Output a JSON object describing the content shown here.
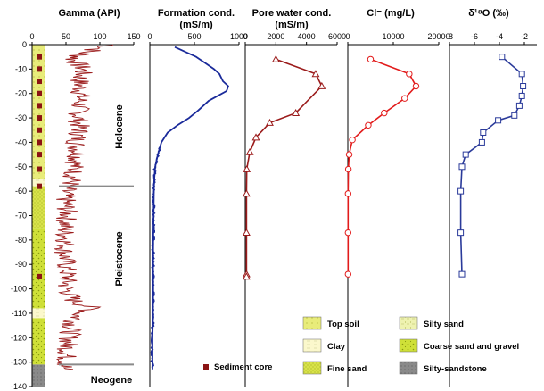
{
  "colors": {
    "gamma": "#9b1b1b",
    "formation": "#1a2a9a",
    "porewater": "#9b1b1b",
    "chloride": "#e21b1b",
    "d18o": "#2a3a9a",
    "top_soil": "#e8ec7a",
    "clay": "#fbf8cc",
    "fine_sand": "#d8e24a",
    "silty_sand": "#eef2b0",
    "coarse_sand": "#cfe038",
    "silty_sandstone": "#8a8a8a",
    "core_marker": "#8b1414",
    "boundary": "#8a8a8a"
  },
  "chart_data": [
    {
      "type": "line",
      "name": "gamma",
      "title": "Gamma (API)",
      "xlim": [
        0,
        150
      ],
      "xticks": [
        0,
        50,
        100,
        150
      ],
      "ylim": [
        0,
        -140
      ],
      "yticks": [
        0,
        -10,
        -20,
        -30,
        -40,
        -50,
        -60,
        -70,
        -80,
        -90,
        -100,
        -110,
        -120,
        -130,
        -140
      ],
      "x_profile": [
        [
          0,
          120
        ],
        [
          -3,
          80
        ],
        [
          -6,
          60
        ],
        [
          -10,
          75
        ],
        [
          -15,
          70
        ],
        [
          -20,
          72
        ],
        [
          -25,
          70
        ],
        [
          -30,
          68
        ],
        [
          -35,
          70
        ],
        [
          -40,
          65
        ],
        [
          -45,
          68
        ],
        [
          -50,
          62
        ],
        [
          -55,
          60
        ],
        [
          -58,
          55
        ],
        [
          -60,
          48
        ],
        [
          -65,
          50
        ],
        [
          -70,
          52
        ],
        [
          -75,
          48
        ],
        [
          -80,
          50
        ],
        [
          -85,
          48
        ],
        [
          -90,
          50
        ],
        [
          -95,
          52
        ],
        [
          -100,
          50
        ],
        [
          -105,
          62
        ],
        [
          -108,
          90
        ],
        [
          -110,
          70
        ],
        [
          -115,
          58
        ],
        [
          -120,
          55
        ],
        [
          -125,
          52
        ],
        [
          -130,
          50
        ],
        [
          -133,
          48
        ]
      ]
    },
    {
      "type": "line",
      "name": "formation",
      "title": "Formation cond.",
      "xlabel": "(mS/m)",
      "xlim": [
        0,
        1000
      ],
      "xticks": [
        0,
        500,
        1000
      ],
      "ylim": [
        0,
        -140
      ],
      "points": [
        [
          -1,
          280
        ],
        [
          -3,
          400
        ],
        [
          -5,
          520
        ],
        [
          -8,
          640
        ],
        [
          -10,
          720
        ],
        [
          -12,
          780
        ],
        [
          -15,
          820
        ],
        [
          -17,
          880
        ],
        [
          -19,
          860
        ],
        [
          -21,
          760
        ],
        [
          -23,
          660
        ],
        [
          -25,
          600
        ],
        [
          -27,
          540
        ],
        [
          -30,
          440
        ],
        [
          -33,
          310
        ],
        [
          -36,
          200
        ],
        [
          -40,
          130
        ],
        [
          -45,
          90
        ],
        [
          -50,
          60
        ],
        [
          -55,
          50
        ],
        [
          -60,
          45
        ],
        [
          -70,
          42
        ],
        [
          -80,
          38
        ],
        [
          -90,
          36
        ],
        [
          -100,
          38
        ],
        [
          -110,
          35
        ],
        [
          -120,
          30
        ],
        [
          -130,
          30
        ],
        [
          -133,
          30
        ]
      ]
    },
    {
      "type": "line",
      "name": "porewater",
      "title": "Pore water cond.",
      "xlabel": "(mS/m)",
      "xlim": [
        0,
        6000
      ],
      "xticks": [
        0,
        2000,
        4000,
        6000
      ],
      "ylim": [
        0,
        -140
      ],
      "points": [
        [
          -6,
          2000
        ],
        [
          -12,
          4600
        ],
        [
          -17,
          5000
        ],
        [
          -28,
          3300
        ],
        [
          -32,
          1600
        ],
        [
          -38,
          700
        ],
        [
          -44,
          300
        ],
        [
          -51,
          100
        ],
        [
          -61,
          80
        ],
        [
          -77,
          80
        ],
        [
          -94,
          80
        ],
        [
          -95,
          80
        ]
      ]
    },
    {
      "type": "line",
      "name": "chloride",
      "title": "Cl⁻ (mg/L)",
      "xlim": [
        0,
        20000
      ],
      "xticks": [
        0,
        10000,
        20000
      ],
      "yticks_labels": [
        "0",
        "10000",
        "20000"
      ],
      "ylim": [
        0,
        -140
      ],
      "points": [
        [
          -6,
          5000
        ],
        [
          -12,
          13500
        ],
        [
          -17,
          15000
        ],
        [
          -22,
          12500
        ],
        [
          -28,
          8000
        ],
        [
          -33,
          4500
        ],
        [
          -39,
          1000
        ],
        [
          -45,
          300
        ],
        [
          -51,
          120
        ],
        [
          -61,
          60
        ],
        [
          -77,
          60
        ],
        [
          -94,
          60
        ]
      ]
    },
    {
      "type": "line",
      "name": "d18o",
      "title": "δ¹⁸O (‰)",
      "xlim": [
        -8,
        -1
      ],
      "xticks": [
        -8,
        -6,
        -4,
        -2
      ],
      "ylim": [
        0,
        -140
      ],
      "points": [
        [
          -5,
          -3.8
        ],
        [
          -12,
          -2.2
        ],
        [
          -17,
          -2.1
        ],
        [
          -21,
          -2.2
        ],
        [
          -25,
          -2.4
        ],
        [
          -29,
          -2.8
        ],
        [
          -31,
          -4.1
        ],
        [
          -36,
          -5.3
        ],
        [
          -40,
          -5.4
        ],
        [
          -45,
          -6.7
        ],
        [
          -50,
          -7.0
        ],
        [
          -60,
          -7.1
        ],
        [
          -77,
          -7.1
        ],
        [
          -94,
          -7.0
        ]
      ]
    }
  ],
  "eras": {
    "holocene": "Holocene",
    "pleistocene": "Pleistocene",
    "neogene": "Neogene"
  },
  "boundaries": [
    -58,
    -131
  ],
  "lithology": [
    {
      "top": 0,
      "bottom": -55,
      "type": "top_soil"
    },
    {
      "top": -55,
      "bottom": -58,
      "type": "clay"
    },
    {
      "top": -58,
      "bottom": -75,
      "type": "fine_sand"
    },
    {
      "top": -75,
      "bottom": -108,
      "type": "coarse_sand"
    },
    {
      "top": -108,
      "bottom": -112,
      "type": "clay"
    },
    {
      "top": -112,
      "bottom": -131,
      "type": "coarse_sand"
    },
    {
      "top": -131,
      "bottom": -140,
      "type": "silty_sandstone"
    }
  ],
  "sediment_cores": [
    -5,
    -10,
    -15,
    -20,
    -25,
    -30,
    -35,
    -40,
    -45,
    -51,
    -58,
    -95
  ],
  "legend": {
    "sediment_core": "Sediment core",
    "top_soil": "Top soil",
    "clay": "Clay",
    "fine_sand": "Fine sand",
    "silty_sand": "Silty sand",
    "coarse_sand": "Coarse sand and gravel",
    "silty_sandstone": "Silty-sandstone"
  }
}
